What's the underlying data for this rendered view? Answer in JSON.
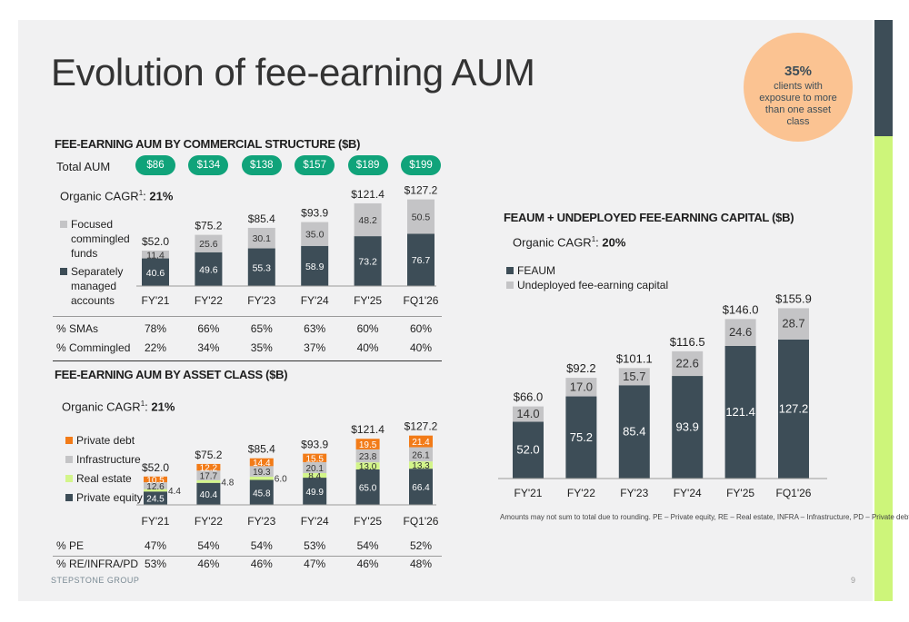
{
  "title": "Evolution of fee-earning AUM",
  "bubble": {
    "pct": "35%",
    "text": "clients with exposure to more than one asset class"
  },
  "brand": "STEPSTONE GROUP",
  "page_number": "9",
  "footnote": "Amounts may not sum to total due to rounding. PE – Private equity, RE – Real estate, INFRA – Infrastructure, PD – Private debt",
  "colors": {
    "dark": "#3d4d57",
    "gray": "#c4c4c6",
    "green": "#d3f58a",
    "orange": "#f27b18",
    "teal": "#10a37a",
    "peach": "#fbc392"
  },
  "chart_data": [
    {
      "type": "bar",
      "title": "FEE-EARNING AUM BY COMMERCIAL STRUCTURE ($B)",
      "cagr_label": "Organic CAGR",
      "cagr_sup": "1",
      "cagr_value": "21%",
      "categories": [
        "FY'21",
        "FY'22",
        "FY'23",
        "FY'24",
        "FY'25",
        "FQ1'26"
      ],
      "totals": [
        "$52.0",
        "$75.2",
        "$85.4",
        "$93.9",
        "$121.4",
        "$127.2"
      ],
      "total_aum_label": "Total AUM",
      "total_aum": [
        "$86",
        "$134",
        "$138",
        "$157",
        "$189",
        "$199"
      ],
      "series": [
        {
          "name": "Separately managed accounts",
          "values": [
            40.6,
            49.6,
            55.3,
            58.9,
            73.2,
            76.7
          ]
        },
        {
          "name": "Focused commingled funds",
          "values": [
            11.4,
            25.6,
            30.1,
            35.0,
            48.2,
            50.5
          ]
        }
      ],
      "rows": [
        {
          "label": "% SMAs",
          "values": [
            "78%",
            "66%",
            "65%",
            "63%",
            "60%",
            "60%"
          ]
        },
        {
          "label": "% Commingled",
          "values": [
            "22%",
            "34%",
            "35%",
            "37%",
            "40%",
            "40%"
          ]
        }
      ]
    },
    {
      "type": "bar",
      "title": "FEE-EARNING AUM BY ASSET CLASS ($B)",
      "cagr_label": "Organic CAGR",
      "cagr_sup": "1",
      "cagr_value": "21%",
      "categories": [
        "FY'21",
        "FY'22",
        "FY'23",
        "FY'24",
        "FY'25",
        "FQ1'26"
      ],
      "totals": [
        "$52.0",
        "$75.2",
        "$85.4",
        "$93.9",
        "$121.4",
        "$127.2"
      ],
      "series": [
        {
          "name": "Private equity",
          "values": [
            24.5,
            40.4,
            45.8,
            49.9,
            65.0,
            66.4
          ]
        },
        {
          "name": "Real estate",
          "values": [
            4.4,
            4.8,
            6.0,
            8.4,
            13.0,
            13.3
          ]
        },
        {
          "name": "Infrastructure",
          "values": [
            12.6,
            17.7,
            19.3,
            20.1,
            23.8,
            26.1
          ]
        },
        {
          "name": "Private debt",
          "values": [
            10.5,
            12.2,
            14.4,
            15.5,
            19.5,
            21.4
          ]
        }
      ],
      "rows": [
        {
          "label": "% PE",
          "values": [
            "47%",
            "54%",
            "54%",
            "53%",
            "54%",
            "52%"
          ]
        },
        {
          "label": "% RE/INFRA/PD",
          "values": [
            "53%",
            "46%",
            "46%",
            "47%",
            "46%",
            "48%"
          ]
        }
      ]
    },
    {
      "type": "bar",
      "title": "FEAUM + UNDEPLOYED FEE-EARNING CAPITAL ($B)",
      "cagr_label": "Organic CAGR",
      "cagr_sup": "1",
      "cagr_value": "20%",
      "categories": [
        "FY'21",
        "FY'22",
        "FY'23",
        "FY'24",
        "FY'25",
        "FQ1'26"
      ],
      "totals": [
        "$66.0",
        "$92.2",
        "$101.1",
        "$116.5",
        "$146.0",
        "$155.9"
      ],
      "series": [
        {
          "name": "FEAUM",
          "values": [
            52.0,
            75.2,
            85.4,
            93.9,
            121.4,
            127.2
          ]
        },
        {
          "name": "Undeployed fee-earning capital",
          "values": [
            14.0,
            17.0,
            15.7,
            22.6,
            24.6,
            28.7
          ]
        }
      ]
    }
  ]
}
